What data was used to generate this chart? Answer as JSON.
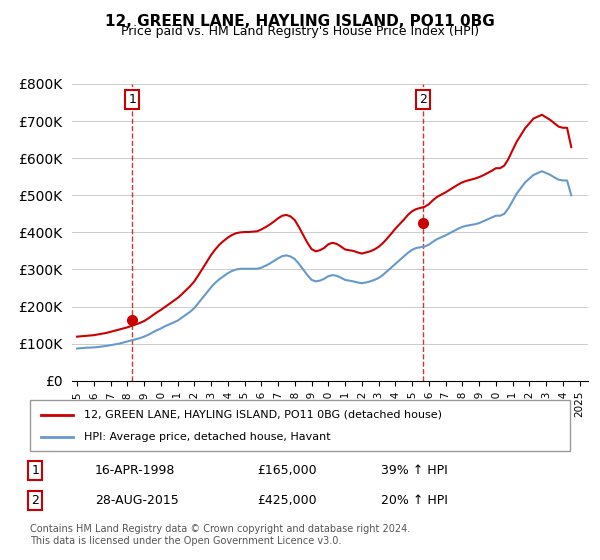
{
  "title": "12, GREEN LANE, HAYLING ISLAND, PO11 0BG",
  "subtitle": "Price paid vs. HM Land Registry's House Price Index (HPI)",
  "ylabel_prefix": "£",
  "ylim": [
    0,
    800000
  ],
  "yticks": [
    0,
    100000,
    200000,
    300000,
    400000,
    500000,
    600000,
    700000,
    800000
  ],
  "xlim_start": 1995.0,
  "xlim_end": 2025.5,
  "sale1_x": 1998.29,
  "sale1_y": 165000,
  "sale1_label": "1",
  "sale1_date": "16-APR-1998",
  "sale1_price": "£165,000",
  "sale1_hpi": "39% ↑ HPI",
  "sale2_x": 2015.66,
  "sale2_y": 425000,
  "sale2_label": "2",
  "sale2_date": "28-AUG-2015",
  "sale2_price": "£425,000",
  "sale2_hpi": "20% ↑ HPI",
  "red_line_color": "#cc0000",
  "blue_line_color": "#6699cc",
  "dashed_line_color": "#cc0000",
  "legend_label_red": "12, GREEN LANE, HAYLING ISLAND, PO11 0BG (detached house)",
  "legend_label_blue": "HPI: Average price, detached house, Havant",
  "footer": "Contains HM Land Registry data © Crown copyright and database right 2024.\nThis data is licensed under the Open Government Licence v3.0.",
  "hpi_x": [
    1995.0,
    1995.25,
    1995.5,
    1995.75,
    1996.0,
    1996.25,
    1996.5,
    1996.75,
    1997.0,
    1997.25,
    1997.5,
    1997.75,
    1998.0,
    1998.25,
    1998.5,
    1998.75,
    1999.0,
    1999.25,
    1999.5,
    1999.75,
    2000.0,
    2000.25,
    2000.5,
    2000.75,
    2001.0,
    2001.25,
    2001.5,
    2001.75,
    2002.0,
    2002.25,
    2002.5,
    2002.75,
    2003.0,
    2003.25,
    2003.5,
    2003.75,
    2004.0,
    2004.25,
    2004.5,
    2004.75,
    2005.0,
    2005.25,
    2005.5,
    2005.75,
    2006.0,
    2006.25,
    2006.5,
    2006.75,
    2007.0,
    2007.25,
    2007.5,
    2007.75,
    2008.0,
    2008.25,
    2008.5,
    2008.75,
    2009.0,
    2009.25,
    2009.5,
    2009.75,
    2010.0,
    2010.25,
    2010.5,
    2010.75,
    2011.0,
    2011.25,
    2011.5,
    2011.75,
    2012.0,
    2012.25,
    2012.5,
    2012.75,
    2013.0,
    2013.25,
    2013.5,
    2013.75,
    2014.0,
    2014.25,
    2014.5,
    2014.75,
    2015.0,
    2015.25,
    2015.5,
    2015.75,
    2016.0,
    2016.25,
    2016.5,
    2016.75,
    2017.0,
    2017.25,
    2017.5,
    2017.75,
    2018.0,
    2018.25,
    2018.5,
    2018.75,
    2019.0,
    2019.25,
    2019.5,
    2019.75,
    2020.0,
    2020.25,
    2020.5,
    2020.75,
    2021.0,
    2021.25,
    2021.5,
    2021.75,
    2022.0,
    2022.25,
    2022.5,
    2022.75,
    2023.0,
    2023.25,
    2023.5,
    2023.75,
    2024.0,
    2024.25,
    2024.5
  ],
  "hpi_y": [
    87000,
    88000,
    89000,
    89500,
    90000,
    91000,
    92500,
    94000,
    96000,
    98000,
    100000,
    103000,
    106000,
    109000,
    112000,
    115000,
    119000,
    124000,
    130000,
    136000,
    141000,
    147000,
    152000,
    157000,
    162000,
    170000,
    178000,
    186000,
    196000,
    210000,
    224000,
    238000,
    252000,
    264000,
    274000,
    282000,
    290000,
    296000,
    300000,
    302000,
    302000,
    302000,
    302000,
    302000,
    305000,
    310000,
    316000,
    323000,
    330000,
    336000,
    338000,
    335000,
    328000,
    315000,
    300000,
    285000,
    272000,
    268000,
    270000,
    275000,
    282000,
    285000,
    283000,
    278000,
    272000,
    270000,
    268000,
    265000,
    263000,
    265000,
    268000,
    272000,
    277000,
    285000,
    295000,
    305000,
    315000,
    325000,
    335000,
    345000,
    353000,
    358000,
    360000,
    362000,
    367000,
    375000,
    382000,
    387000,
    392000,
    398000,
    404000,
    410000,
    415000,
    418000,
    420000,
    422000,
    425000,
    430000,
    435000,
    440000,
    445000,
    445000,
    450000,
    465000,
    485000,
    505000,
    520000,
    535000,
    545000,
    555000,
    560000,
    565000,
    560000,
    555000,
    548000,
    542000,
    540000,
    540000,
    500000
  ],
  "red_x": [
    1995.0,
    1995.25,
    1995.5,
    1995.75,
    1996.0,
    1996.25,
    1996.5,
    1996.75,
    1997.0,
    1997.25,
    1997.5,
    1997.75,
    1998.0,
    1998.25,
    1998.5,
    1998.75,
    1999.0,
    1999.25,
    1999.5,
    1999.75,
    2000.0,
    2000.25,
    2000.5,
    2000.75,
    2001.0,
    2001.25,
    2001.5,
    2001.75,
    2002.0,
    2002.25,
    2002.5,
    2002.75,
    2003.0,
    2003.25,
    2003.5,
    2003.75,
    2004.0,
    2004.25,
    2004.5,
    2004.75,
    2005.0,
    2005.25,
    2005.5,
    2005.75,
    2006.0,
    2006.25,
    2006.5,
    2006.75,
    2007.0,
    2007.25,
    2007.5,
    2007.75,
    2008.0,
    2008.25,
    2008.5,
    2008.75,
    2009.0,
    2009.25,
    2009.5,
    2009.75,
    2010.0,
    2010.25,
    2010.5,
    2010.75,
    2011.0,
    2011.25,
    2011.5,
    2011.75,
    2012.0,
    2012.25,
    2012.5,
    2012.75,
    2013.0,
    2013.25,
    2013.5,
    2013.75,
    2014.0,
    2014.25,
    2014.5,
    2014.75,
    2015.0,
    2015.25,
    2015.5,
    2015.75,
    2016.0,
    2016.25,
    2016.5,
    2016.75,
    2017.0,
    2017.25,
    2017.5,
    2017.75,
    2018.0,
    2018.25,
    2018.5,
    2018.75,
    2019.0,
    2019.25,
    2019.5,
    2019.75,
    2020.0,
    2020.25,
    2020.5,
    2020.75,
    2021.0,
    2021.25,
    2021.5,
    2021.75,
    2022.0,
    2022.25,
    2022.5,
    2022.75,
    2023.0,
    2023.25,
    2023.5,
    2023.75,
    2024.0,
    2024.25,
    2024.5
  ],
  "red_y": [
    119000,
    120000,
    121000,
    122000,
    123000,
    125000,
    127000,
    129000,
    132000,
    135000,
    138000,
    141000,
    144000,
    148000,
    152000,
    156000,
    161000,
    168000,
    176000,
    184000,
    191000,
    199000,
    207000,
    215000,
    223000,
    233000,
    244000,
    255000,
    268000,
    285000,
    303000,
    321000,
    339000,
    354000,
    367000,
    377000,
    386000,
    393000,
    398000,
    400000,
    401000,
    401000,
    402000,
    403000,
    408000,
    414000,
    421000,
    429000,
    438000,
    445000,
    447000,
    443000,
    433000,
    414000,
    393000,
    372000,
    355000,
    349000,
    352000,
    358000,
    368000,
    372000,
    369000,
    362000,
    354000,
    352000,
    350000,
    346000,
    343000,
    346000,
    349000,
    354000,
    361000,
    371000,
    383000,
    396000,
    410000,
    422000,
    434000,
    447000,
    457000,
    463000,
    466000,
    469000,
    476000,
    487000,
    496000,
    502000,
    508000,
    515000,
    522000,
    529000,
    535000,
    539000,
    542000,
    545000,
    549000,
    554000,
    560000,
    566000,
    573000,
    573000,
    580000,
    598000,
    622000,
    645000,
    663000,
    681000,
    694000,
    707000,
    712000,
    717000,
    710000,
    703000,
    694000,
    685000,
    682000,
    682000,
    630000
  ]
}
